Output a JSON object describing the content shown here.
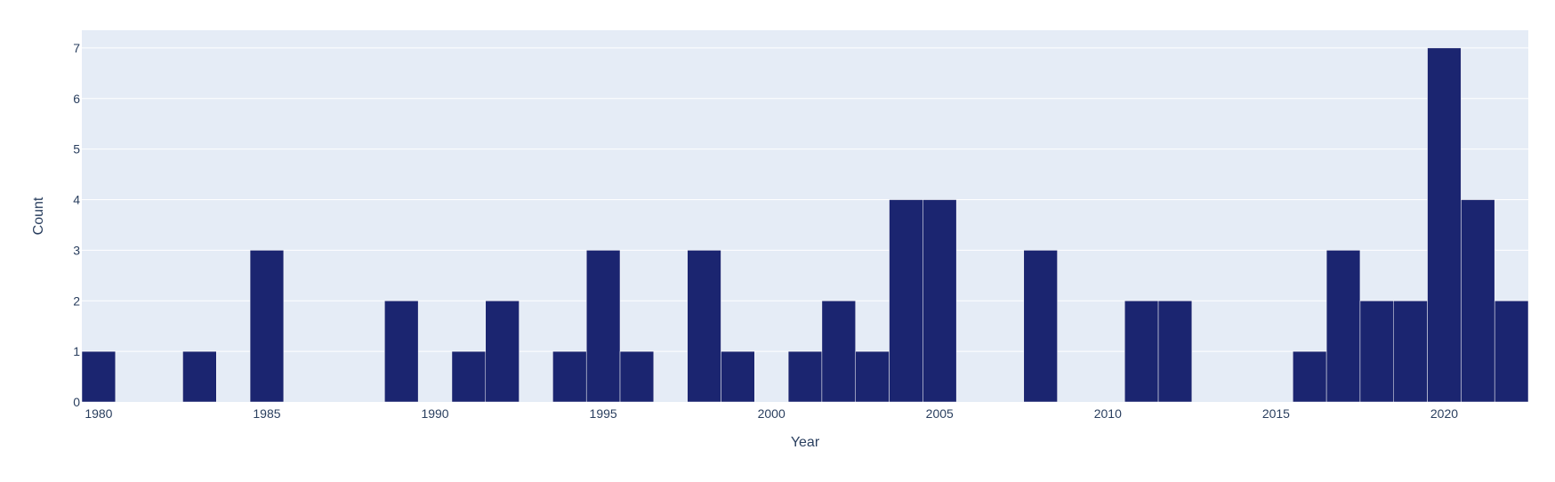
{
  "chart_data": {
    "type": "bar",
    "title": "",
    "xlabel": "Year",
    "ylabel": "Count",
    "xlim": [
      1979.5,
      2022.5
    ],
    "ylim": [
      0,
      7.35
    ],
    "bin_width": 1,
    "x_ticks": [
      1980,
      1985,
      1990,
      1995,
      2000,
      2005,
      2010,
      2015,
      2020
    ],
    "y_ticks": [
      0,
      1,
      2,
      3,
      4,
      5,
      6,
      7
    ],
    "bins": [
      {
        "year": 1980,
        "count": 1
      },
      {
        "year": 1983,
        "count": 1
      },
      {
        "year": 1985,
        "count": 3
      },
      {
        "year": 1989,
        "count": 2
      },
      {
        "year": 1991,
        "count": 1
      },
      {
        "year": 1992,
        "count": 2
      },
      {
        "year": 1994,
        "count": 1
      },
      {
        "year": 1995,
        "count": 3
      },
      {
        "year": 1996,
        "count": 1
      },
      {
        "year": 1998,
        "count": 3
      },
      {
        "year": 1999,
        "count": 1
      },
      {
        "year": 2001,
        "count": 1
      },
      {
        "year": 2002,
        "count": 2
      },
      {
        "year": 2003,
        "count": 1
      },
      {
        "year": 2004,
        "count": 4
      },
      {
        "year": 2005,
        "count": 4
      },
      {
        "year": 2008,
        "count": 3
      },
      {
        "year": 2011,
        "count": 2
      },
      {
        "year": 2012,
        "count": 2
      },
      {
        "year": 2016,
        "count": 1
      },
      {
        "year": 2017,
        "count": 3
      },
      {
        "year": 2018,
        "count": 2
      },
      {
        "year": 2019,
        "count": 2
      },
      {
        "year": 2020,
        "count": 7
      },
      {
        "year": 2021,
        "count": 4
      },
      {
        "year": 2022,
        "count": 2
      }
    ],
    "grid": true,
    "legend": "none",
    "colors": {
      "bar": "#1b2570",
      "bar_edge": "#ffffff",
      "plot_background": "#e5ecf6",
      "grid": "#ffffff",
      "text": "#2a3f5f"
    }
  }
}
